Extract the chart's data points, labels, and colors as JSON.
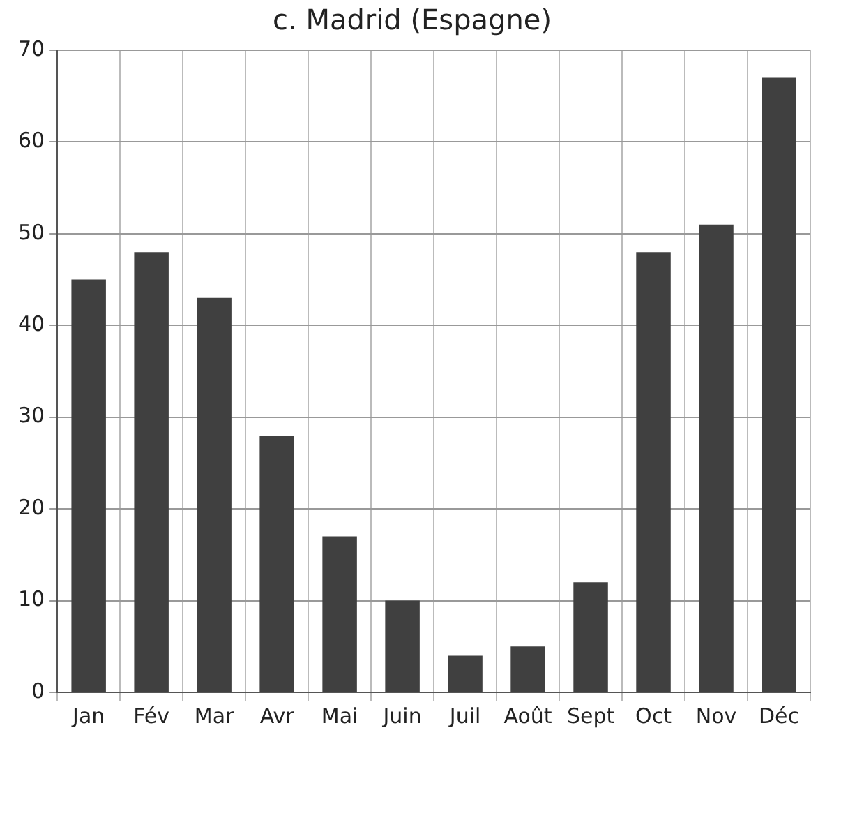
{
  "chart_data": {
    "type": "bar",
    "title": "c. Madrid (Espagne)",
    "categories": [
      "Jan",
      "Fév",
      "Mar",
      "Avr",
      "Mai",
      "Juin",
      "Juil",
      "Août",
      "Sept",
      "Oct",
      "Nov",
      "Déc"
    ],
    "values": [
      45,
      48,
      43,
      28,
      17,
      10,
      4,
      5,
      12,
      48,
      51,
      67
    ],
    "color": "#404040",
    "ylim": [
      0,
      70
    ],
    "yticks": [
      0,
      10,
      20,
      30,
      40,
      50,
      60,
      70
    ],
    "grid": true,
    "legend": false
  }
}
